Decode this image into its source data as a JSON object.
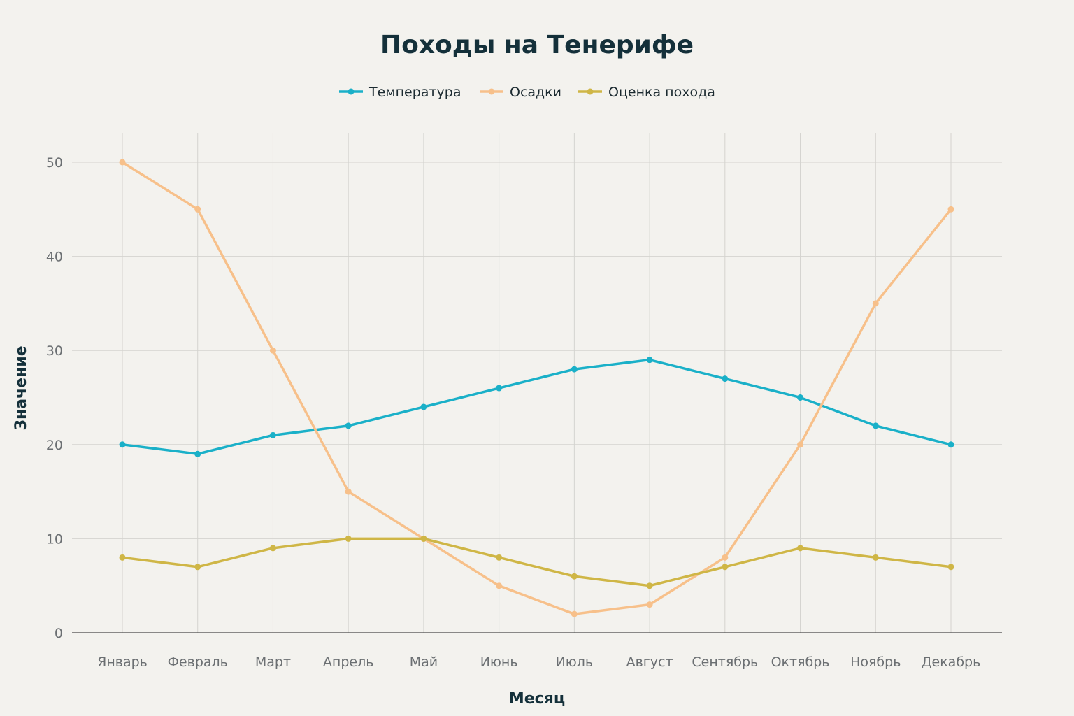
{
  "chart_data": {
    "type": "line",
    "title": "Походы на Тенерифе",
    "xlabel": "Месяц",
    "ylabel": "Значение",
    "categories": [
      "Январь",
      "Февраль",
      "Март",
      "Апрель",
      "Май",
      "Июнь",
      "Июль",
      "Август",
      "Сентябрь",
      "Октябрь",
      "Ноябрь",
      "Декабрь"
    ],
    "ylim": [
      0,
      53
    ],
    "yticks": [
      0,
      10,
      20,
      30,
      40,
      50
    ],
    "grid": true,
    "legend_position": "top-center",
    "series": [
      {
        "name": "Температура",
        "color": "#1ab0c8",
        "values": [
          20,
          19,
          21,
          22,
          24,
          26,
          28,
          29,
          27,
          25,
          22,
          20
        ]
      },
      {
        "name": "Осадки",
        "color": "#f7c08a",
        "values": [
          50,
          45,
          30,
          15,
          10,
          5,
          2,
          3,
          8,
          20,
          35,
          45
        ]
      },
      {
        "name": "Оценка похода",
        "color": "#cfb646",
        "values": [
          8,
          7,
          9,
          10,
          10,
          8,
          6,
          5,
          7,
          9,
          8,
          7
        ]
      }
    ]
  }
}
